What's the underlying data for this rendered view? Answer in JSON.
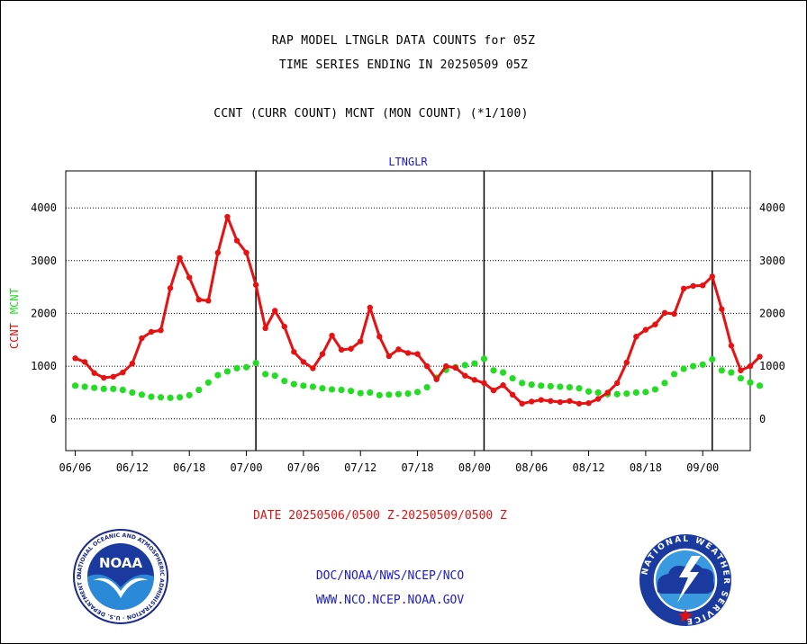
{
  "header": {
    "line1": "RAP MODEL LTNGLR DATA COUNTS for 05Z",
    "line2": "TIME SERIES ENDING IN 20250509 05Z",
    "line3": "CCNT (CURR COUNT) MCNT (MON COUNT) (*1/100)"
  },
  "footer": {
    "date_range": "DATE 20250506/0500 Z-20250509/0500 Z",
    "org": "DOC/NOAA/NWS/NCEP/NCO",
    "url": "WWW.NCO.NCEP.NOAA.GOV"
  },
  "logos": {
    "left": "NOAA",
    "left_ring": "NATIONAL OCEANIC AND ATMOSPHERIC ADMINISTRATION · U.S. DEPARTMENT OF COMMERCE ·",
    "right_ring": "NATIONAL WEATHER SERVICE"
  },
  "colors": {
    "ccnt": "#e81010",
    "mcnt": "#22dd22",
    "panel_label": "#1a1acc"
  },
  "chart_data": {
    "type": "line",
    "panel_title": "LTNGLR",
    "ylabel_ccnt": "CCNT",
    "ylabel_mcnt": "MCNT",
    "ylim": [
      -600,
      4700
    ],
    "yticks": [
      0,
      1000,
      2000,
      3000,
      4000
    ],
    "xlim_hours": [
      -1,
      71
    ],
    "x_tick_hours": [
      0,
      6,
      12,
      18,
      24,
      30,
      36,
      42,
      48,
      54,
      60,
      66
    ],
    "x_tick_labels": [
      "06/06",
      "06/12",
      "06/18",
      "07/00",
      "07/06",
      "07/12",
      "07/18",
      "08/00",
      "08/06",
      "08/12",
      "08/18",
      "09/00"
    ],
    "day_boundary_hours": [
      19,
      43,
      67
    ],
    "series": [
      {
        "name": "CCNT",
        "values": [
          1150,
          1080,
          870,
          780,
          800,
          880,
          1050,
          1530,
          1650,
          1680,
          2480,
          3050,
          2680,
          2260,
          2240,
          3150,
          3830,
          3380,
          3150,
          2540,
          1720,
          2050,
          1750,
          1270,
          1080,
          960,
          1230,
          1580,
          1310,
          1330,
          1470,
          2110,
          1560,
          1190,
          1320,
          1250,
          1230,
          1000,
          750,
          1000,
          970,
          820,
          740,
          680,
          540,
          640,
          460,
          290,
          330,
          360,
          340,
          320,
          340,
          290,
          300,
          380,
          500,
          680,
          1070,
          1560,
          1690,
          1790,
          2010,
          1990,
          2470,
          2520,
          2530,
          2700,
          2080,
          1390,
          920,
          1000,
          1180
        ]
      },
      {
        "name": "MCNT",
        "values": [
          630,
          610,
          590,
          570,
          570,
          550,
          500,
          460,
          420,
          410,
          400,
          410,
          450,
          550,
          690,
          830,
          900,
          960,
          980,
          1060,
          850,
          820,
          720,
          660,
          630,
          610,
          580,
          560,
          550,
          530,
          490,
          500,
          450,
          460,
          470,
          480,
          510,
          600,
          780,
          930,
          980,
          1020,
          1050,
          1140,
          920,
          880,
          770,
          680,
          650,
          630,
          620,
          610,
          600,
          580,
          520,
          500,
          470,
          470,
          480,
          500,
          510,
          560,
          680,
          850,
          950,
          1000,
          1030,
          1130,
          920,
          880,
          770,
          690,
          630
        ]
      }
    ]
  }
}
